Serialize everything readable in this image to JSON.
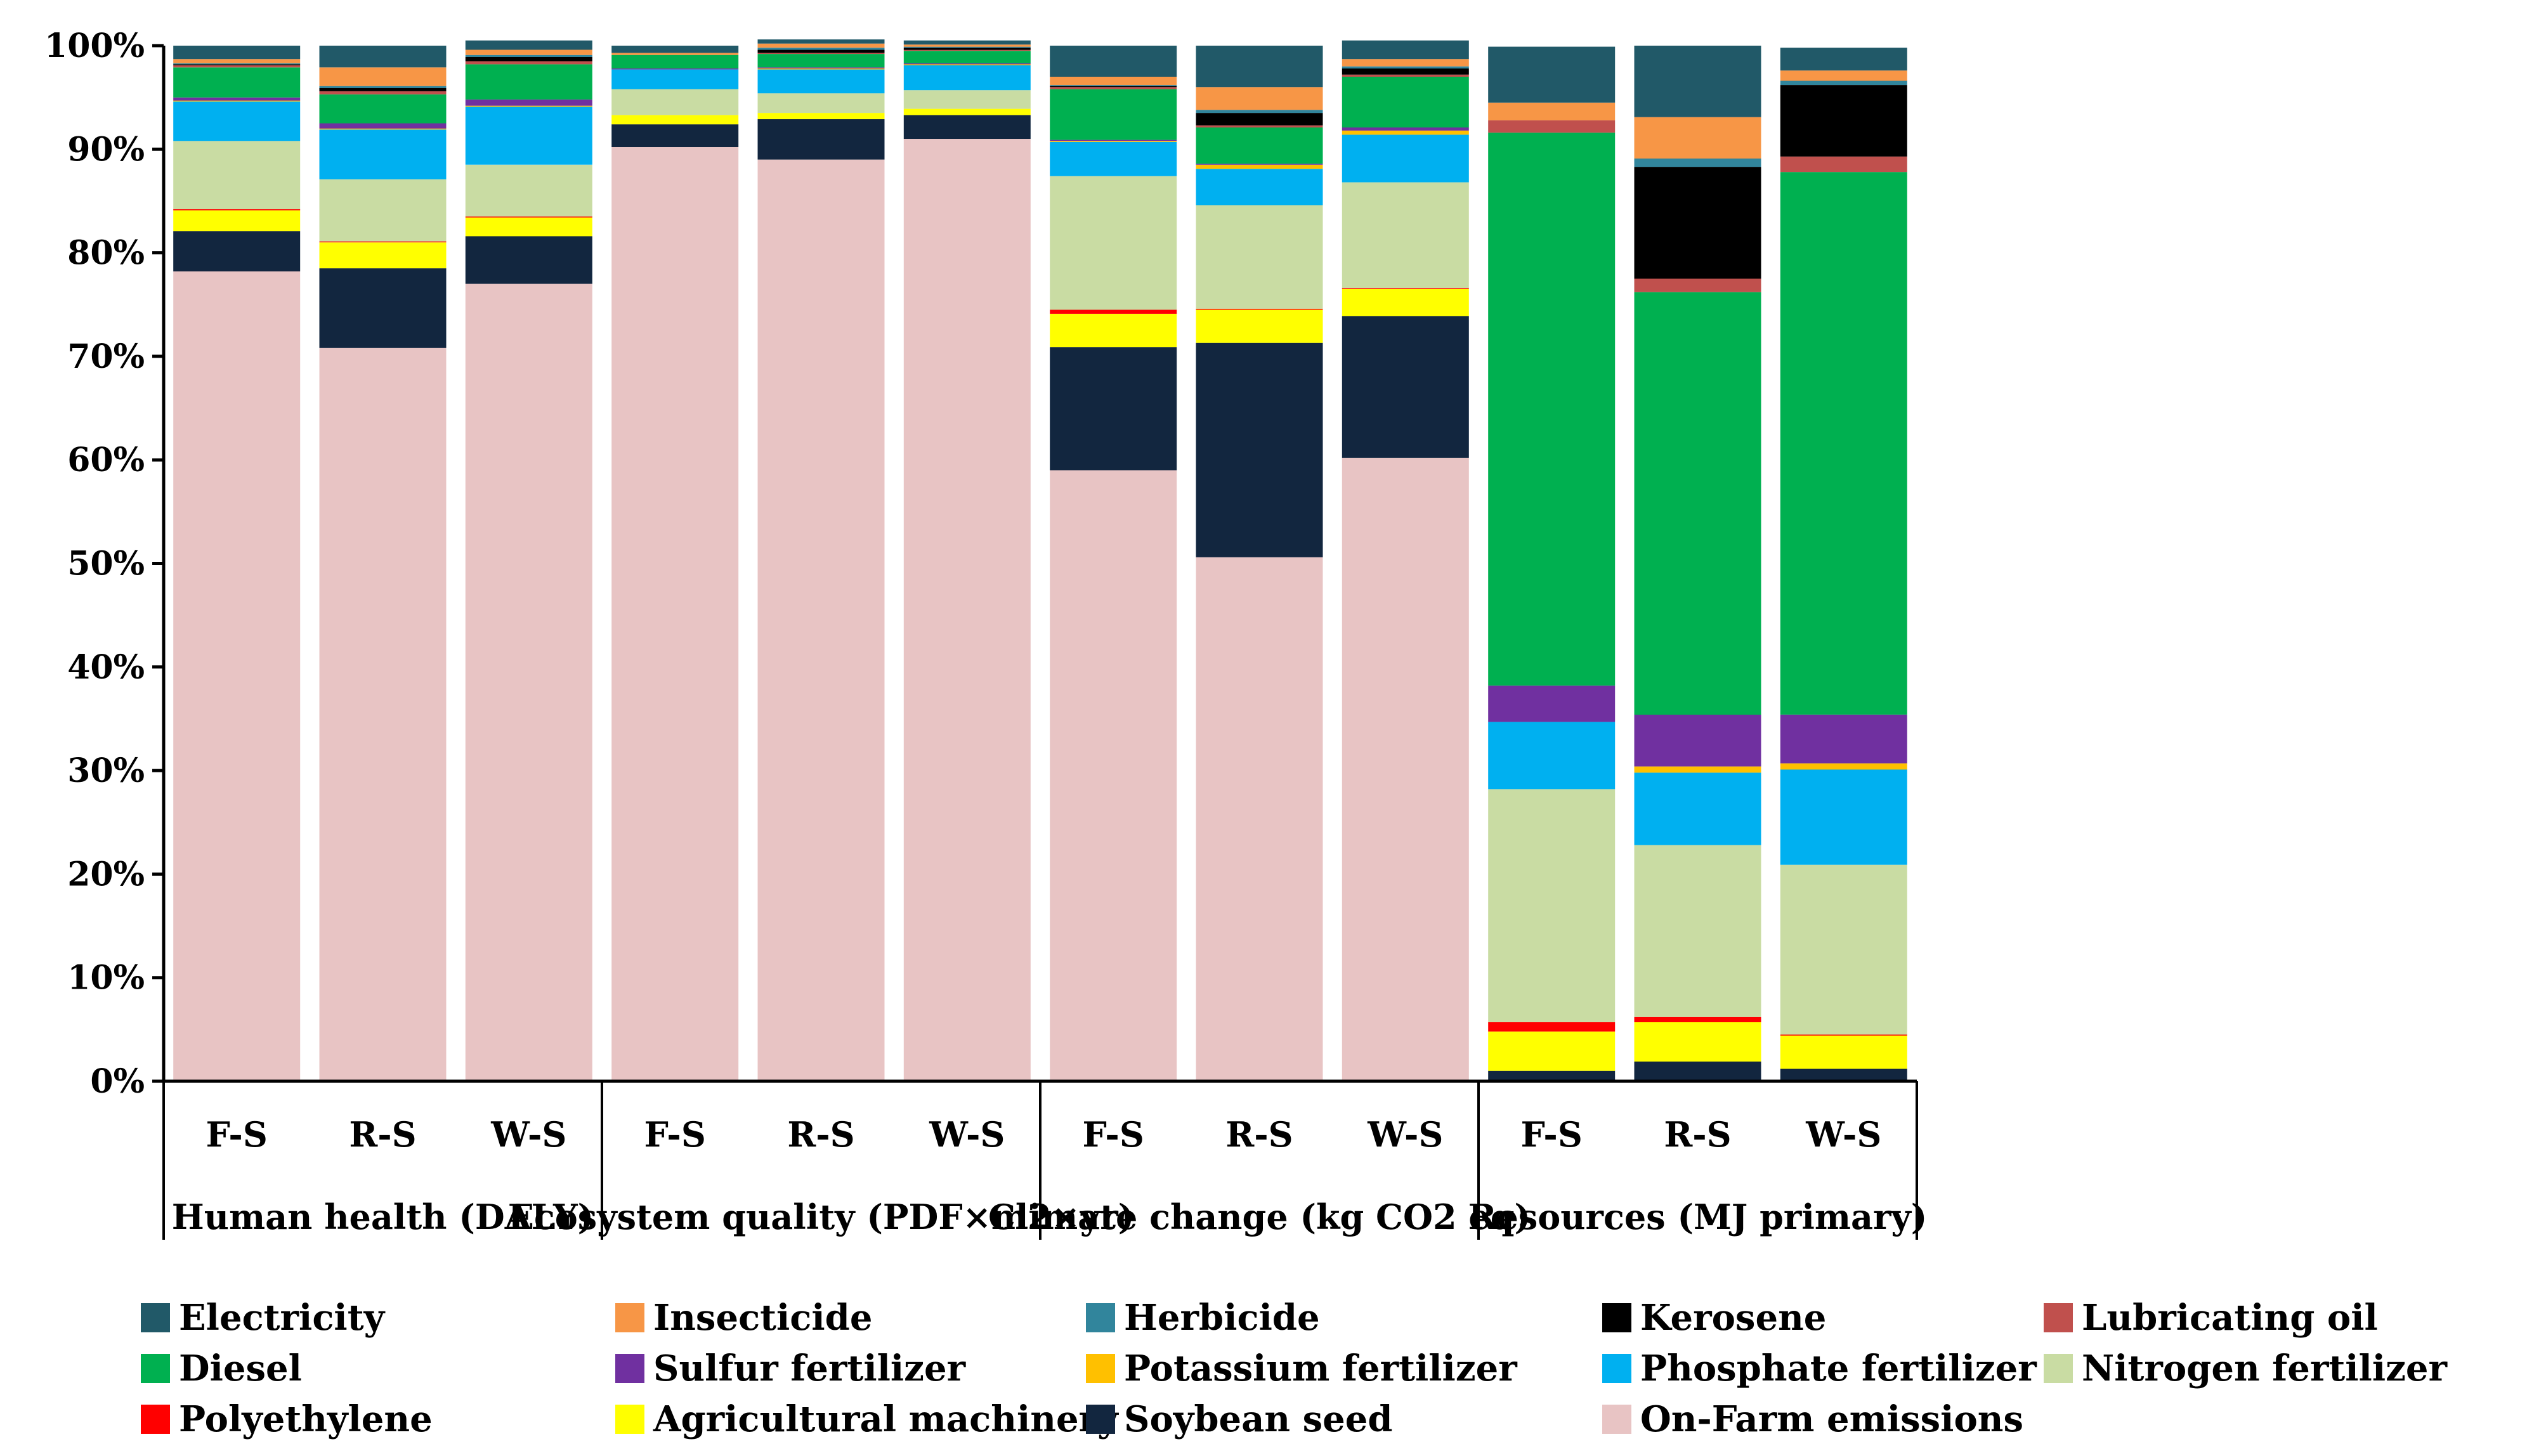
{
  "chart_data": {
    "type": "bar",
    "stacked": true,
    "normalized": true,
    "y_axis": {
      "ticks": [
        "0%",
        "10%",
        "20%",
        "30%",
        "40%",
        "50%",
        "60%",
        "70%",
        "80%",
        "90%",
        "100%"
      ],
      "ylim": [
        0,
        100
      ],
      "grid": false
    },
    "groups": [
      {
        "label": "Human health (DALY)",
        "bars": [
          "F-S",
          "R-S",
          "W-S"
        ]
      },
      {
        "label": "Ecosystem quality (PDF×m2×yr)",
        "bars": [
          "F-S",
          "R-S",
          "W-S"
        ]
      },
      {
        "label": "Climate change (kg CO2 eq)",
        "bars": [
          "F-S",
          "R-S",
          "W-S"
        ]
      },
      {
        "label": "Resources (MJ primary)",
        "bars": [
          "F-S",
          "R-S",
          "W-S"
        ]
      }
    ],
    "stack_order": [
      "On-Farm emissions",
      "Soybean seed",
      "Agricultural machinery",
      "Polyethylene",
      "Nitrogen fertilizer",
      "Phosphate fertilizer",
      "Potassium fertilizer",
      "Sulfur fertilizer",
      "Diesel",
      "Lubricating oil",
      "Kerosene",
      "Herbicide",
      "Insecticide",
      "Electricity"
    ],
    "series": [
      {
        "name": "On-Farm emissions",
        "color": "#e8c4c4",
        "values": [
          78.2,
          70.8,
          77.0,
          90.2,
          89.0,
          91.0,
          59.0,
          50.6,
          60.2,
          0,
          0,
          0
        ]
      },
      {
        "name": "Soybean seed",
        "color": "#12263f",
        "values": [
          3.9,
          7.7,
          4.6,
          2.2,
          3.9,
          2.3,
          11.9,
          20.7,
          13.7,
          1.0,
          1.9,
          1.2
        ]
      },
      {
        "name": "Agricultural machinery",
        "color": "#ffff00",
        "values": [
          2.0,
          2.5,
          1.8,
          0.9,
          0.6,
          0.6,
          3.2,
          3.2,
          2.6,
          3.8,
          3.8,
          3.2
        ]
      },
      {
        "name": "Polyethylene",
        "color": "#ff0000",
        "values": [
          0.1,
          0.1,
          0.1,
          0,
          0,
          0,
          0.4,
          0.1,
          0.1,
          0.9,
          0.5,
          0.1
        ]
      },
      {
        "name": "Nitrogen fertilizer",
        "color": "#c9dca3",
        "values": [
          6.6,
          6.0,
          5.0,
          2.5,
          1.9,
          1.8,
          12.9,
          10.0,
          10.2,
          22.5,
          16.6,
          16.4
        ]
      },
      {
        "name": "Phosphate fertilizer",
        "color": "#00b0f0",
        "values": [
          3.8,
          4.8,
          5.6,
          1.9,
          2.3,
          2.4,
          3.3,
          3.5,
          4.6,
          6.5,
          7.0,
          9.2
        ]
      },
      {
        "name": "Potassium fertilizer",
        "color": "#ffc000",
        "values": [
          0.1,
          0.1,
          0.1,
          0,
          0.1,
          0.1,
          0.1,
          0.4,
          0.4,
          0,
          0.6,
          0.6
        ]
      },
      {
        "name": "Sulfur fertilizer",
        "color": "#7030a0",
        "values": [
          0.3,
          0.5,
          0.6,
          0.1,
          0.1,
          0.1,
          0.1,
          0.1,
          0.3,
          3.5,
          5.0,
          4.7
        ]
      },
      {
        "name": "Diesel",
        "color": "#00b050",
        "values": [
          2.9,
          2.8,
          3.4,
          1.3,
          1.3,
          1.2,
          4.9,
          3.5,
          4.9,
          53.4,
          40.8,
          52.4
        ]
      },
      {
        "name": "Lubricating oil",
        "color": "#c0504d",
        "values": [
          0.2,
          0.3,
          0.3,
          0,
          0.1,
          0.1,
          0.2,
          0.2,
          0.2,
          1.2,
          1.3,
          1.5
        ]
      },
      {
        "name": "Kerosene",
        "color": "#000000",
        "values": [
          0.1,
          0.3,
          0.4,
          0,
          0.3,
          0.2,
          0.1,
          1.2,
          0.6,
          0,
          10.8,
          6.9
        ]
      },
      {
        "name": "Herbicide",
        "color": "#31859c",
        "values": [
          0.1,
          0.2,
          0.2,
          0,
          0.2,
          0.1,
          0.1,
          0.3,
          0.2,
          0,
          0.8,
          0.4
        ]
      },
      {
        "name": "Insecticide",
        "color": "#f79646",
        "values": [
          0.4,
          1.8,
          0.5,
          0.2,
          0.4,
          0.2,
          0.8,
          2.2,
          0.7,
          1.7,
          4.0,
          1.0
        ]
      },
      {
        "name": "Electricity",
        "color": "#215968",
        "values": [
          1.3,
          2.1,
          0.9,
          0.7,
          0.4,
          0.4,
          3.0,
          4.0,
          1.8,
          5.4,
          6.9,
          2.2
        ]
      }
    ],
    "legend": {
      "placement": "bottom",
      "order": [
        "Electricity",
        "Insecticide",
        "Herbicide",
        "Kerosene",
        "Lubricating oil",
        "Diesel",
        "Sulfur fertilizer",
        "Potassium fertilizer",
        "Phosphate fertilizer",
        "Nitrogen fertilizer",
        "Polyethylene",
        "Agricultural machinery",
        "Soybean seed",
        "On-Farm emissions"
      ]
    }
  }
}
